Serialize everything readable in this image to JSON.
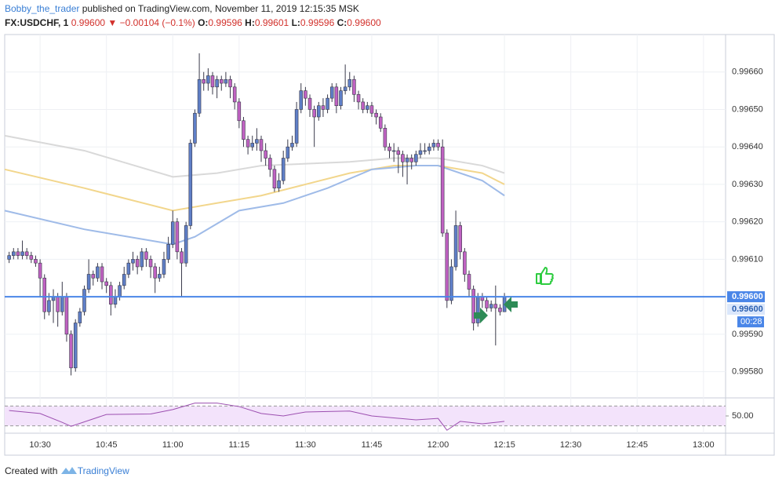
{
  "header": {
    "author": "Bobby_the_trader",
    "published": " published on TradingView.com, November 11, 2019 12:15:35 MSK",
    "symbol": "FX:USDCHF, 1",
    "price": "0.99600",
    "arrow": "▼",
    "change": "−0.00104 (−0.1%)",
    "o_label": "O:",
    "o": "0.99596",
    "h_label": "H:",
    "h": "0.99601",
    "l_label": "L:",
    "l": "0.99596",
    "c_label": "C:",
    "c": "0.99600"
  },
  "footer": {
    "created": "Created with",
    "brand": "TradingView"
  },
  "chart_data": {
    "type": "candlestick",
    "up_color": "#5f7fc7",
    "down_color": "#c062c2",
    "wick_color": "#3a3a4a",
    "price_line_color": "#4a86e8",
    "xlim": [
      "10:22",
      "13:05"
    ],
    "xticks": [
      "10:30",
      "10:45",
      "11:00",
      "11:15",
      "11:30",
      "11:45",
      "12:00",
      "12:15",
      "12:30",
      "12:45",
      "13:00"
    ],
    "ylim": [
      0.99573,
      0.9967
    ],
    "yticks": [
      {
        "value": 0.9958,
        "label": "0.99580"
      },
      {
        "value": 0.9959,
        "label": "0.99590"
      },
      {
        "value": 0.996,
        "label": "0.99600"
      },
      {
        "value": 0.9961,
        "label": "0.99610"
      },
      {
        "value": 0.9962,
        "label": "0.99620"
      },
      {
        "value": 0.9963,
        "label": "0.99630"
      },
      {
        "value": 0.9964,
        "label": "0.99640"
      },
      {
        "value": 0.9965,
        "label": "0.99650"
      },
      {
        "value": 0.9966,
        "label": "0.99660"
      }
    ],
    "grid": true,
    "price_labels": [
      "0.99600",
      "0.99600",
      "00:28"
    ],
    "x": [
      "10:23",
      "10:24",
      "10:25",
      "10:26",
      "10:27",
      "10:28",
      "10:29",
      "10:30",
      "10:31",
      "10:32",
      "10:33",
      "10:34",
      "10:35",
      "10:36",
      "10:37",
      "10:38",
      "10:39",
      "10:40",
      "10:41",
      "10:42",
      "10:43",
      "10:44",
      "10:45",
      "10:46",
      "10:47",
      "10:48",
      "10:49",
      "10:50",
      "10:51",
      "10:52",
      "10:53",
      "10:54",
      "10:55",
      "10:56",
      "10:57",
      "10:58",
      "10:59",
      "11:00",
      "11:01",
      "11:02",
      "11:03",
      "11:04",
      "11:05",
      "11:06",
      "11:07",
      "11:08",
      "11:09",
      "11:10",
      "11:11",
      "11:12",
      "11:13",
      "11:14",
      "11:15",
      "11:16",
      "11:17",
      "11:18",
      "11:19",
      "11:20",
      "11:21",
      "11:22",
      "11:23",
      "11:24",
      "11:25",
      "11:26",
      "11:27",
      "11:28",
      "11:29",
      "11:30",
      "11:31",
      "11:32",
      "11:33",
      "11:34",
      "11:35",
      "11:36",
      "11:37",
      "11:38",
      "11:39",
      "11:40",
      "11:41",
      "11:42",
      "11:43",
      "11:44",
      "11:45",
      "11:46",
      "11:47",
      "11:48",
      "11:49",
      "11:50",
      "11:51",
      "11:52",
      "11:53",
      "11:54",
      "11:55",
      "11:56",
      "11:57",
      "11:58",
      "11:59",
      "12:00",
      "12:01",
      "12:02",
      "12:03",
      "12:04",
      "12:05",
      "12:06",
      "12:07",
      "12:08",
      "12:09",
      "12:10",
      "12:11",
      "12:12",
      "12:13",
      "12:14",
      "12:15"
    ],
    "open": [
      0.9961,
      0.99611,
      0.99612,
      0.99611,
      0.99612,
      0.99611,
      0.9961,
      0.99609,
      0.99605,
      0.99596,
      0.99599,
      0.996,
      0.99596,
      0.996,
      0.9959,
      0.99581,
      0.99593,
      0.99596,
      0.99602,
      0.99606,
      0.99605,
      0.99608,
      0.99604,
      0.99603,
      0.99598,
      0.996,
      0.99603,
      0.99606,
      0.99609,
      0.9961,
      0.99608,
      0.99612,
      0.9961,
      0.99608,
      0.99605,
      0.99606,
      0.9961,
      0.99614,
      0.9962,
      0.99612,
      0.99609,
      0.99619,
      0.99641,
      0.99649,
      0.99658,
      0.99657,
      0.99659,
      0.99656,
      0.99658,
      0.99657,
      0.99658,
      0.99656,
      0.99652,
      0.99647,
      0.99642,
      0.9964,
      0.99641,
      0.99642,
      0.99639,
      0.99637,
      0.99634,
      0.99629,
      0.99631,
      0.99637,
      0.9964,
      0.99641,
      0.9965,
      0.99655,
      0.99653,
      0.9965,
      0.99648,
      0.99651,
      0.9965,
      0.99653,
      0.99656,
      0.99651,
      0.99655,
      0.99656,
      0.99658,
      0.99654,
      0.99652,
      0.9965,
      0.99651,
      0.99649,
      0.99648,
      0.99645,
      0.9964,
      0.99639,
      0.99639,
      0.99638,
      0.99636,
      0.99637,
      0.99636,
      0.99638,
      0.99639,
      0.99639,
      0.9964,
      0.99641,
      0.9964,
      0.99617,
      0.99599,
      0.99608,
      0.99619,
      0.99612,
      0.99606,
      0.99602,
      0.99593,
      0.996,
      0.99599,
      0.99597,
      0.99598,
      0.99597,
      0.99596
    ],
    "high": [
      0.99612,
      0.99613,
      0.99613,
      0.99615,
      0.99613,
      0.99612,
      0.99611,
      0.9961,
      0.99606,
      0.99601,
      0.99602,
      0.99601,
      0.99604,
      0.99601,
      0.99591,
      0.99594,
      0.99597,
      0.99603,
      0.9961,
      0.99607,
      0.99609,
      0.99609,
      0.99605,
      0.99604,
      0.99602,
      0.99604,
      0.99608,
      0.9961,
      0.99612,
      0.99611,
      0.99613,
      0.99613,
      0.99611,
      0.99609,
      0.99608,
      0.99612,
      0.99616,
      0.99623,
      0.99621,
      0.99613,
      0.9962,
      0.99642,
      0.9965,
      0.99665,
      0.9966,
      0.99661,
      0.9966,
      0.99659,
      0.99659,
      0.9966,
      0.99659,
      0.99657,
      0.99653,
      0.99648,
      0.99643,
      0.99643,
      0.99645,
      0.99643,
      0.99641,
      0.99638,
      0.99635,
      0.99633,
      0.99639,
      0.99642,
      0.99643,
      0.99652,
      0.99657,
      0.99656,
      0.99654,
      0.99651,
      0.99652,
      0.99653,
      0.99654,
      0.99657,
      0.99657,
      0.99656,
      0.99662,
      0.9966,
      0.99659,
      0.99655,
      0.99653,
      0.99652,
      0.99652,
      0.9965,
      0.99649,
      0.99646,
      0.99641,
      0.99641,
      0.9964,
      0.99639,
      0.99638,
      0.99638,
      0.99639,
      0.99641,
      0.99641,
      0.99641,
      0.99642,
      0.99642,
      0.99642,
      0.99618,
      0.9961,
      0.99623,
      0.9962,
      0.99613,
      0.99607,
      0.99603,
      0.99601,
      0.99601,
      0.996,
      0.99599,
      0.99603,
      0.99598,
      0.99601
    ],
    "low": [
      0.99609,
      0.9961,
      0.9961,
      0.9961,
      0.9961,
      0.99609,
      0.99608,
      0.996,
      0.99594,
      0.99595,
      0.99593,
      0.99592,
      0.99595,
      0.99588,
      0.99579,
      0.9958,
      0.99592,
      0.99595,
      0.99601,
      0.99603,
      0.99604,
      0.99602,
      0.99601,
      0.99595,
      0.99597,
      0.99599,
      0.99602,
      0.99605,
      0.99607,
      0.99606,
      0.99607,
      0.99608,
      0.99605,
      0.99601,
      0.99604,
      0.99605,
      0.99609,
      0.99613,
      0.9961,
      0.996,
      0.99608,
      0.99618,
      0.9964,
      0.99648,
      0.99655,
      0.99655,
      0.99654,
      0.99653,
      0.99655,
      0.99656,
      0.99653,
      0.9965,
      0.99645,
      0.9964,
      0.99638,
      0.99639,
      0.99639,
      0.99636,
      0.99635,
      0.99632,
      0.99628,
      0.99628,
      0.9963,
      0.99636,
      0.99639,
      0.9964,
      0.99649,
      0.99651,
      0.99648,
      0.9964,
      0.99647,
      0.99648,
      0.99649,
      0.99652,
      0.99649,
      0.9965,
      0.99654,
      0.99655,
      0.99652,
      0.9965,
      0.99649,
      0.99649,
      0.99648,
      0.99646,
      0.99644,
      0.99639,
      0.99637,
      0.99636,
      0.99633,
      0.99632,
      0.9963,
      0.99634,
      0.99635,
      0.99637,
      0.99638,
      0.99638,
      0.99639,
      0.99639,
      0.99616,
      0.99597,
      0.99598,
      0.99607,
      0.9961,
      0.99604,
      0.996,
      0.99591,
      0.99592,
      0.99597,
      0.99596,
      0.99596,
      0.99587,
      0.99595,
      0.99596
    ],
    "close": [
      0.99611,
      0.99612,
      0.99611,
      0.99612,
      0.99611,
      0.9961,
      0.99609,
      0.99605,
      0.99596,
      0.99599,
      0.996,
      0.99596,
      0.996,
      0.9959,
      0.99581,
      0.99593,
      0.99596,
      0.99602,
      0.99606,
      0.99605,
      0.99608,
      0.99604,
      0.99603,
      0.99598,
      0.996,
      0.99603,
      0.99606,
      0.99609,
      0.9961,
      0.99608,
      0.99612,
      0.9961,
      0.99608,
      0.99605,
      0.99606,
      0.9961,
      0.99614,
      0.9962,
      0.99612,
      0.99609,
      0.99619,
      0.99641,
      0.99649,
      0.99658,
      0.99657,
      0.99659,
      0.99656,
      0.99658,
      0.99657,
      0.99658,
      0.99656,
      0.99652,
      0.99647,
      0.99642,
      0.9964,
      0.99641,
      0.99642,
      0.99639,
      0.99637,
      0.99634,
      0.99629,
      0.99631,
      0.99637,
      0.9964,
      0.99641,
      0.9965,
      0.99655,
      0.99653,
      0.9965,
      0.99648,
      0.99651,
      0.9965,
      0.99653,
      0.99656,
      0.99651,
      0.99655,
      0.99656,
      0.99658,
      0.99654,
      0.99652,
      0.9965,
      0.99651,
      0.99649,
      0.99648,
      0.99645,
      0.9964,
      0.99639,
      0.99639,
      0.99638,
      0.99636,
      0.99637,
      0.99636,
      0.99638,
      0.99639,
      0.99639,
      0.9964,
      0.99641,
      0.9964,
      0.99617,
      0.99599,
      0.99608,
      0.99619,
      0.99612,
      0.99606,
      0.99602,
      0.99593,
      0.996,
      0.99599,
      0.99597,
      0.99598,
      0.99597,
      0.99596,
      0.996
    ],
    "moving_averages": [
      {
        "color": "#d9d9d9",
        "x": [
          "10:22",
          "10:40",
          "11:00",
          "11:10",
          "11:20",
          "11:40",
          "11:50",
          "12:00",
          "12:10",
          "12:15"
        ],
        "values": [
          0.99643,
          0.99639,
          0.99632,
          0.99633,
          0.99635,
          0.99636,
          0.99637,
          0.99637,
          0.99635,
          0.99633
        ]
      },
      {
        "color": "#f2d68c",
        "x": [
          "10:22",
          "10:40",
          "10:50",
          "11:00",
          "11:10",
          "11:20",
          "11:30",
          "11:40",
          "11:50",
          "12:00",
          "12:10",
          "12:15"
        ],
        "values": [
          0.99634,
          0.99629,
          0.99626,
          0.99623,
          0.99625,
          0.99627,
          0.9963,
          0.99633,
          0.99635,
          0.99635,
          0.99633,
          0.9963
        ]
      },
      {
        "color": "#9fbbe8",
        "x": [
          "10:22",
          "10:40",
          "10:50",
          "11:00",
          "11:05",
          "11:15",
          "11:25",
          "11:35",
          "11:45",
          "11:55",
          "12:00",
          "12:10",
          "12:15"
        ],
        "values": [
          0.99623,
          0.99618,
          0.99616,
          0.99614,
          0.99616,
          0.99623,
          0.99625,
          0.99629,
          0.99634,
          0.99635,
          0.99635,
          0.99631,
          0.99627
        ]
      }
    ],
    "rsi": {
      "color": "#9c4fb0",
      "band_color": "#f3e3fb",
      "ylim": [
        15,
        85
      ],
      "yticks": [
        {
          "value": 50,
          "label": "50.00"
        }
      ],
      "levels": [
        70,
        30
      ],
      "x": [
        "10:23",
        "10:30",
        "10:35",
        "10:37",
        "10:45",
        "10:55",
        "11:00",
        "11:05",
        "11:10",
        "11:15",
        "11:20",
        "11:25",
        "11:30",
        "11:40",
        "11:45",
        "11:55",
        "12:00",
        "12:02",
        "12:05",
        "12:10",
        "12:15"
      ],
      "values": [
        61,
        55,
        37,
        29,
        53,
        54,
        63,
        76,
        76,
        69,
        55,
        50,
        58,
        60,
        50,
        42,
        45,
        21,
        39,
        34,
        39
      ]
    }
  }
}
